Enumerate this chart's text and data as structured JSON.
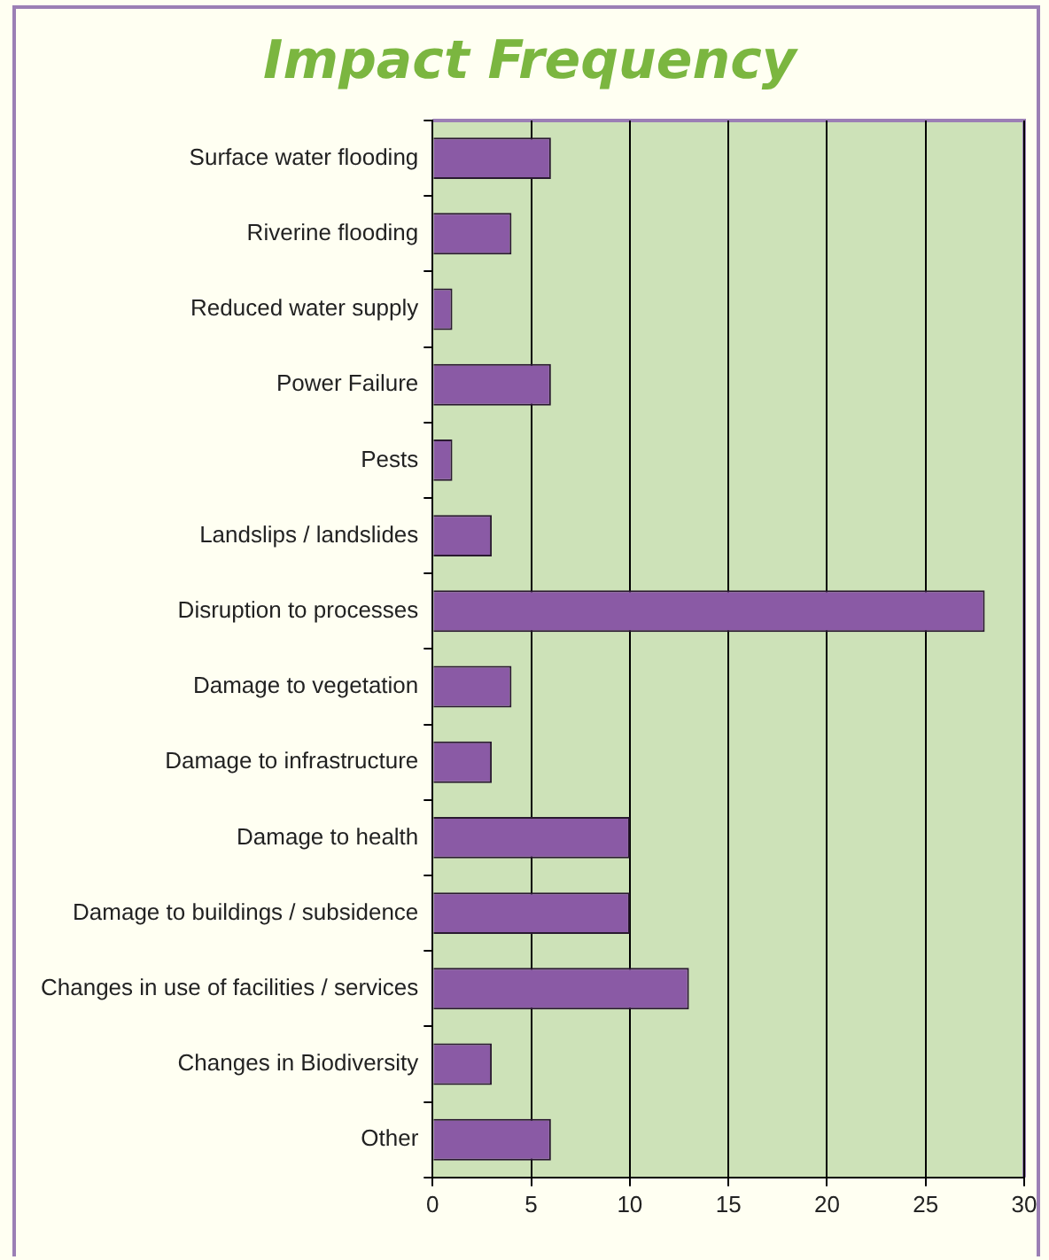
{
  "chart_data": {
    "type": "bar",
    "orientation": "horizontal",
    "title": "Impact Frequency",
    "categories": [
      "Surface water flooding",
      "Riverine flooding",
      "Reduced water supply",
      "Power Failure",
      "Pests",
      "Landslips / landslides",
      "Disruption to processes",
      "Damage to vegetation",
      "Damage to infrastructure",
      "Damage to health",
      "Damage to buildings / subsidence",
      "Changes in use of facilities / services",
      "Changes in Biodiversity",
      "Other"
    ],
    "values": [
      6,
      4,
      1,
      6,
      1,
      3,
      28,
      4,
      3,
      10,
      10,
      13,
      3,
      6
    ],
    "color": "#8a5aa5",
    "xlim": [
      0,
      30
    ],
    "xticks": [
      0,
      5,
      10,
      15,
      20,
      25,
      30
    ],
    "grid": "x",
    "legend": false
  }
}
